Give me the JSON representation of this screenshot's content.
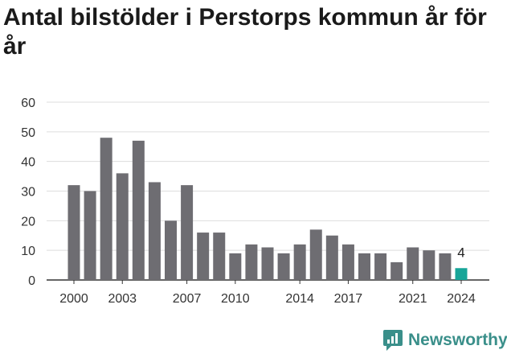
{
  "chart_data": {
    "type": "bar",
    "title": "Antal bilstölder i Perstorps kommun år för år",
    "xlabel": "",
    "ylabel": "",
    "x": [
      2000,
      2001,
      2002,
      2003,
      2004,
      2005,
      2006,
      2007,
      2008,
      2009,
      2010,
      2011,
      2012,
      2013,
      2014,
      2015,
      2016,
      2017,
      2018,
      2019,
      2020,
      2021,
      2022,
      2023,
      2024
    ],
    "values": [
      32,
      30,
      48,
      36,
      47,
      33,
      20,
      32,
      16,
      16,
      9,
      12,
      11,
      9,
      12,
      17,
      15,
      12,
      9,
      9,
      6,
      11,
      10,
      9,
      4
    ],
    "x_tick_labels": [
      2000,
      2003,
      2007,
      2010,
      2014,
      2017,
      2021,
      2024
    ],
    "ylim": [
      0,
      60
    ],
    "y_ticks": [
      0,
      10,
      20,
      30,
      40,
      50,
      60
    ],
    "grid": true,
    "highlight_index": 24,
    "highlight_label": "4",
    "colors": {
      "bar": "#6e6d72",
      "highlight": "#17a598",
      "grid": "#dddddd",
      "axis": "#333333"
    }
  },
  "brand": {
    "name": "Newsworthy",
    "icon": "newsworthy-logo-icon"
  }
}
